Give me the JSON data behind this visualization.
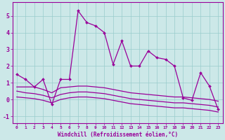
{
  "x": [
    0,
    1,
    2,
    3,
    4,
    5,
    6,
    7,
    8,
    9,
    10,
    11,
    12,
    13,
    14,
    15,
    16,
    17,
    18,
    19,
    20,
    21,
    22,
    23
  ],
  "main_line": [
    1.5,
    1.2,
    0.75,
    1.2,
    -0.3,
    1.2,
    1.2,
    5.3,
    4.6,
    4.4,
    4.0,
    2.1,
    3.5,
    2.0,
    2.0,
    2.9,
    2.5,
    2.4,
    2.0,
    0.1,
    -0.05,
    1.6,
    0.8,
    -0.6
  ],
  "line2": [
    0.75,
    0.75,
    0.75,
    0.6,
    0.4,
    0.7,
    0.75,
    0.8,
    0.8,
    0.75,
    0.7,
    0.6,
    0.5,
    0.4,
    0.35,
    0.3,
    0.25,
    0.2,
    0.15,
    0.15,
    0.1,
    0.05,
    0.0,
    -0.1
  ],
  "line3": [
    0.5,
    0.4,
    0.35,
    0.25,
    0.1,
    0.3,
    0.4,
    0.45,
    0.45,
    0.4,
    0.35,
    0.25,
    0.15,
    0.05,
    0.0,
    -0.05,
    -0.1,
    -0.15,
    -0.2,
    -0.2,
    -0.25,
    -0.3,
    -0.35,
    -0.45
  ],
  "line4": [
    0.15,
    0.1,
    0.05,
    -0.05,
    -0.2,
    0.0,
    0.1,
    0.15,
    0.15,
    0.1,
    0.05,
    -0.05,
    -0.15,
    -0.25,
    -0.3,
    -0.35,
    -0.4,
    -0.45,
    -0.5,
    -0.5,
    -0.55,
    -0.6,
    -0.65,
    -0.75
  ],
  "bg_color": "#cce8e8",
  "grid_color": "#99cccc",
  "line_color": "#990099",
  "xlabel": "Windchill (Refroidissement éolien,°C)",
  "yticks": [
    -1,
    0,
    1,
    2,
    3,
    4,
    5
  ],
  "ylim": [
    -1.4,
    5.8
  ],
  "xlim": [
    -0.5,
    23.5
  ]
}
